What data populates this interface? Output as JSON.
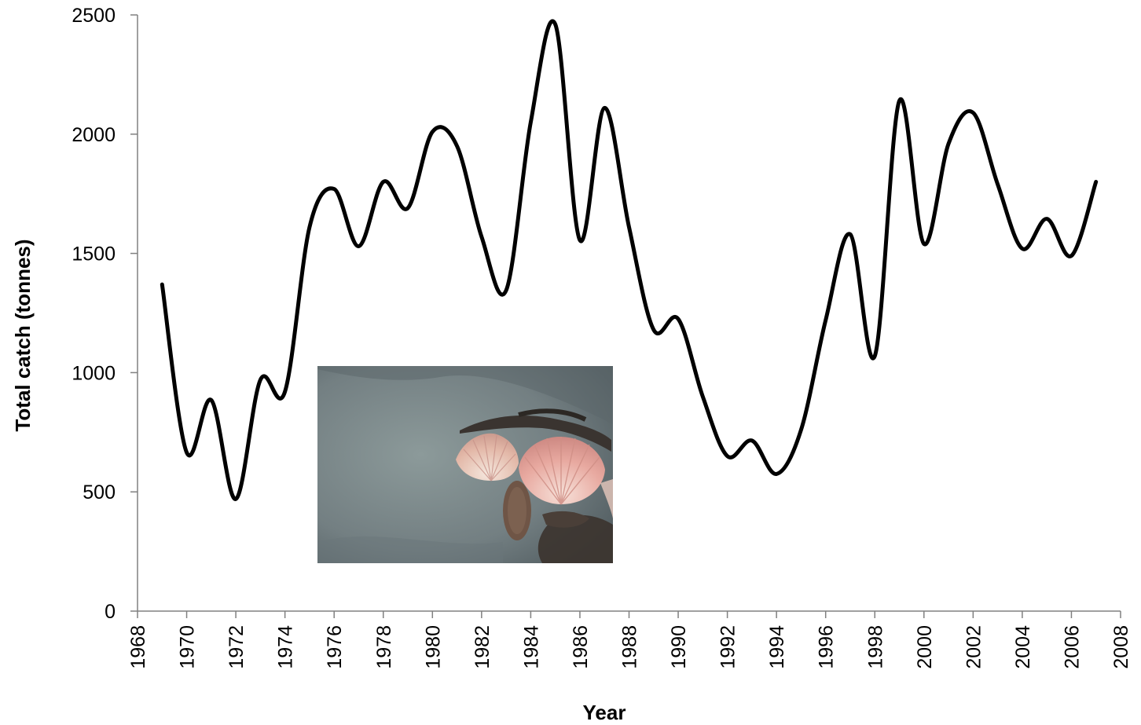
{
  "chart_data": {
    "type": "line",
    "title": "",
    "xlabel": "Year",
    "ylabel": "Total catch (tonnes)",
    "xlim": [
      1968,
      2008
    ],
    "ylim": [
      0,
      2500
    ],
    "xticks": [
      1968,
      1970,
      1972,
      1974,
      1976,
      1978,
      1980,
      1982,
      1984,
      1986,
      1988,
      1990,
      1992,
      1994,
      1996,
      1998,
      2000,
      2002,
      2004,
      2006,
      2008
    ],
    "yticks": [
      0,
      500,
      1000,
      1500,
      2000,
      2500
    ],
    "grid": false,
    "legend": "none",
    "line_color": "#000000",
    "series": [
      {
        "x": [
          1969,
          1970,
          1971,
          1972,
          1973,
          1974,
          1975,
          1976,
          1977,
          1978,
          1979,
          1980,
          1981,
          1982,
          1983,
          1984,
          1985,
          1986,
          1987,
          1988,
          1989,
          1990,
          1991,
          1992,
          1993,
          1994,
          1995,
          1996,
          1997,
          1998,
          1999,
          2000,
          2001,
          2002,
          2003,
          2004,
          2005,
          2006,
          2007
        ],
        "values": [
          1370,
          665,
          885,
          470,
          970,
          920,
          1610,
          1770,
          1530,
          1800,
          1690,
          2010,
          1950,
          1570,
          1345,
          2050,
          2460,
          1555,
          2110,
          1610,
          1180,
          1225,
          900,
          650,
          715,
          575,
          760,
          1220,
          1580,
          1070,
          2140,
          1540,
          1960,
          2090,
          1790,
          1520,
          1645,
          1490,
          1800
        ]
      }
    ],
    "inset_image": "scallops-on-seabed-photo"
  }
}
